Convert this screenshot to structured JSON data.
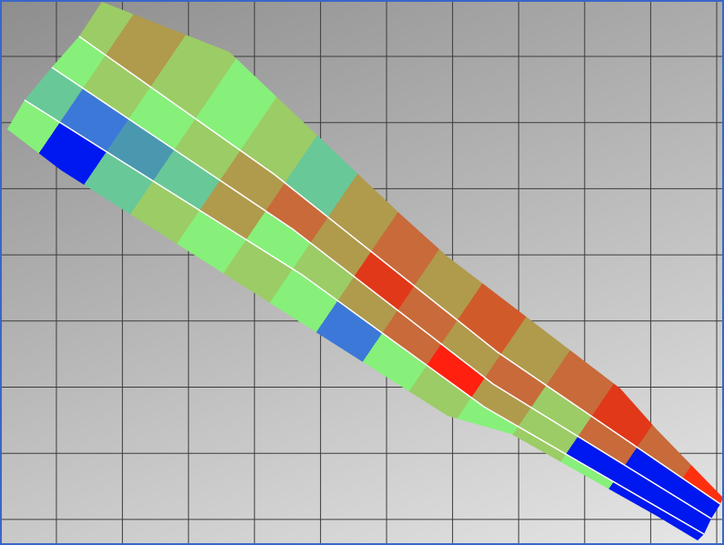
{
  "viewport": {
    "border_color": "#3a66c8",
    "grid_color": "#3c3c3c",
    "lane_divider_color": "#ffffff",
    "lanes": [
      {
        "colors": [
          "#9ccc66",
          "#b09a4c",
          "#9ccc66",
          "#86f07a",
          "#9ccc66",
          "#68c898",
          "#b09a4c",
          "#c86a3a",
          "#b09a4c",
          "#d05a2a",
          "#b09a4c",
          "#c86a3a",
          "#e03818",
          "#c86a3a",
          "#ff3010"
        ]
      },
      {
        "colors": [
          "#86f07a",
          "#9ccc66",
          "#86f07a",
          "#9ccc66",
          "#b09a4c",
          "#c86a3a",
          "#b09a4c",
          "#e03818",
          "#c86a3a",
          "#b09a4c",
          "#c86a3a",
          "#9ccc66",
          "#c86a3a",
          "#0018f0",
          "#0018f0"
        ]
      },
      {
        "colors": [
          "#68c898",
          "#3c78d8",
          "#4a98b0",
          "#68c898",
          "#b09a4c",
          "#86f07a",
          "#9ccc66",
          "#b09a4c",
          "#c86a3a",
          "#ff2010",
          "#b09a4c",
          "#9ccc66",
          "#0018f0",
          "#0018f0",
          "#0018f0"
        ]
      },
      {
        "colors": [
          "#86f07a",
          "#0018f0",
          "#68c898",
          "#9ccc66",
          "#86f07a",
          "#9ccc66",
          "#86f07a",
          "#3c78d8",
          "#86f07a",
          "#9ccc66",
          "#86f07a",
          "#9ccc66",
          "#86f07a",
          "#0018f0",
          "#0018f0"
        ]
      }
    ]
  }
}
